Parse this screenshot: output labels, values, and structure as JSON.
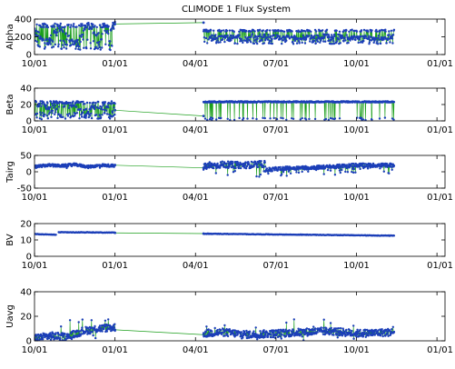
{
  "figure": {
    "title": "CLIMODE 1 Flux System",
    "colors": {
      "line": "#1a9e1a",
      "marker": "#1c3fb8",
      "axis": "#000000",
      "background": "#ffffff"
    }
  },
  "chart_data": [
    {
      "type": "line",
      "ylabel": "Alpha",
      "ylim": [
        0,
        400
      ],
      "yticks": [
        "0",
        "200",
        "400"
      ],
      "xticks": [
        "10/01",
        "01/01",
        "04/01",
        "07/01",
        "10/01",
        "01/01"
      ],
      "xlim_months_from_oct": [
        0,
        15.3
      ],
      "series": [
        {
          "segments": [
            {
              "x": [
                0,
                0.5,
                1,
                1.5,
                2,
                2.5,
                3.0
              ],
              "y": [
                250,
                150,
                300,
                80,
                330,
                200,
                340
              ],
              "style": "dense-oscillation",
              "band": [
                50,
                350
              ]
            },
            {
              "x": [
                3.0,
                6.3
              ],
              "y": [
                345,
                360
              ],
              "style": "gap-line"
            },
            {
              "x": [
                6.3,
                7,
                8,
                9,
                10,
                11,
                12,
                13.4
              ],
              "y": [
                210,
                190,
                215,
                200,
                195,
                210,
                190,
                200
              ],
              "style": "dense-oscillation",
              "band": [
                120,
                280
              ]
            }
          ]
        }
      ]
    },
    {
      "type": "line",
      "ylabel": "Beta",
      "ylim": [
        0,
        40
      ],
      "yticks": [
        "0",
        "20",
        "40"
      ],
      "xticks": [
        "10/01",
        "01/01",
        "04/01",
        "07/01",
        "10/01",
        "01/01"
      ],
      "xlim_months_from_oct": [
        0,
        15.3
      ],
      "series": [
        {
          "segments": [
            {
              "x": [
                0,
                0.6,
                1.2,
                1.8,
                2.4,
                3.0
              ],
              "y": [
                22,
                15,
                20,
                12,
                18,
                13
              ],
              "style": "dense-oscillation",
              "band": [
                2,
                24
              ]
            },
            {
              "x": [
                3.0,
                6.3
              ],
              "y": [
                13,
                6
              ],
              "style": "gap-line"
            },
            {
              "x": [
                6.3,
                7,
                8,
                9,
                10,
                11,
                12,
                13.4
              ],
              "y": [
                24,
                24,
                24,
                24,
                24,
                24,
                24,
                24
              ],
              "style": "top-with-drops",
              "band": [
                1,
                24
              ]
            }
          ]
        }
      ]
    },
    {
      "type": "line",
      "ylabel": "Tairg",
      "ylim": [
        -50,
        50
      ],
      "yticks": [
        "-50",
        "0",
        "50"
      ],
      "xticks": [
        "10/01",
        "01/01",
        "04/01",
        "07/01",
        "10/01",
        "01/01"
      ],
      "xlim_months_from_oct": [
        0,
        15.3
      ],
      "series": [
        {
          "segments": [
            {
              "x": [
                0,
                0.5,
                1,
                1.5,
                2,
                2.5,
                3.0
              ],
              "y": [
                15,
                20,
                18,
                22,
                15,
                20,
                18
              ],
              "style": "noisy",
              "band": [
                5,
                28
              ]
            },
            {
              "x": [
                3.0,
                6.3
              ],
              "y": [
                20,
                12
              ],
              "style": "gap-line"
            },
            {
              "x": [
                6.3,
                7,
                7.8,
                8.6
              ],
              "y": [
                15,
                22,
                20,
                24
              ],
              "style": "noisy",
              "band": [
                -25,
                32
              ]
            },
            {
              "x": [
                8.6,
                9.2,
                10,
                11,
                12,
                13.4
              ],
              "y": [
                5,
                10,
                12,
                15,
                20,
                20
              ],
              "style": "noisy-with-spikes",
              "band": [
                -25,
                32
              ]
            }
          ]
        }
      ]
    },
    {
      "type": "line",
      "ylabel": "BV",
      "ylim": [
        0,
        20
      ],
      "yticks": [
        "0",
        "10",
        "20"
      ],
      "xticks": [
        "10/01",
        "01/01",
        "04/01",
        "07/01",
        "10/01",
        "01/01"
      ],
      "xlim_months_from_oct": [
        0,
        15.3
      ],
      "series": [
        {
          "segments": [
            {
              "x": [
                0,
                0.8
              ],
              "y": [
                13.6,
                13.2
              ],
              "style": "flat"
            },
            {
              "x": [
                0.9,
                3.0
              ],
              "y": [
                14.7,
                14.5
              ],
              "style": "flat"
            },
            {
              "x": [
                3.0,
                6.3
              ],
              "y": [
                14.3,
                13.9
              ],
              "style": "gap-line"
            },
            {
              "x": [
                6.3,
                13.4
              ],
              "y": [
                13.8,
                12.6
              ],
              "style": "flat"
            }
          ]
        }
      ]
    },
    {
      "type": "line",
      "ylabel": "Uavg",
      "ylim": [
        0,
        40
      ],
      "yticks": [
        "0",
        "20",
        "40"
      ],
      "xticks": [
        "10/01",
        "01/01",
        "04/01",
        "07/01",
        "10/01",
        "01/01"
      ],
      "xlim_months_from_oct": [
        0,
        15.3
      ],
      "series": [
        {
          "segments": [
            {
              "x": [
                0,
                0.6,
                1.2,
                1.8,
                2.4,
                3.0
              ],
              "y": [
                2,
                4,
                3,
                8,
                10,
                11
              ],
              "style": "noisy",
              "band": [
                0,
                18
              ]
            },
            {
              "x": [
                3.0,
                6.3
              ],
              "y": [
                9,
                5
              ],
              "style": "gap-line"
            },
            {
              "x": [
                6.3,
                7,
                8,
                9,
                10,
                11,
                12,
                13.4
              ],
              "y": [
                6,
                7,
                5,
                6,
                7,
                8,
                6,
                7
              ],
              "style": "noisy",
              "band": [
                0,
                18
              ]
            }
          ]
        }
      ]
    }
  ]
}
